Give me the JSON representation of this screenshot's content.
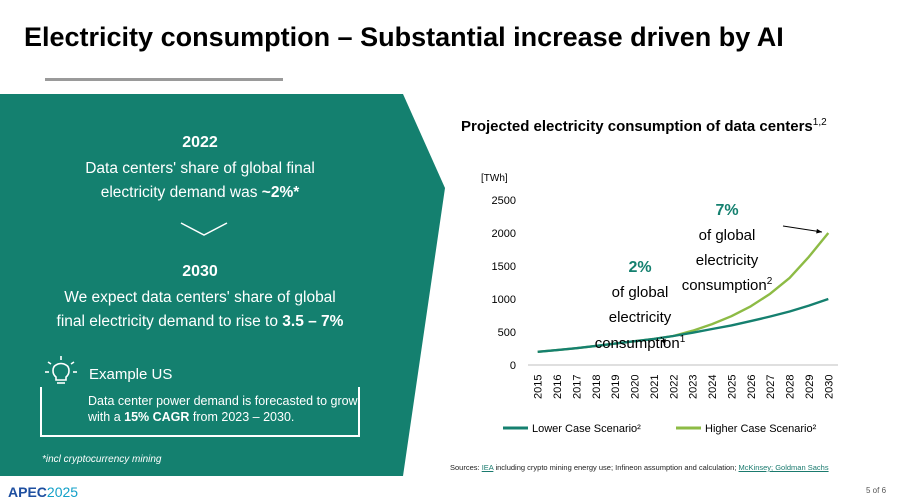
{
  "slide": {
    "title": "Electricity consumption – Substantial increase driven by AI",
    "page_number": "5 of 6",
    "logo_main": "APEC",
    "logo_year": "2025"
  },
  "panel": {
    "color": "#14806f",
    "year1": "2022",
    "text1_line1": "Data centers' share of global final",
    "text1_line2_pre": "electricity demand was ",
    "text1_line2_bold": "~2%*",
    "year2": "2030",
    "text2_line1": "We expect data centers' share of global",
    "text2_line2_pre": "final electricity demand to rise to ",
    "text2_line2_bold": "3.5 – 7%",
    "example_label": "Example US",
    "example_pre": "Data center power demand is forecasted to grow with a ",
    "example_bold": "15% CAGR",
    "example_post": " from 2023 – 2030.",
    "footnote": "*incl cryptocurrency mining"
  },
  "sources": {
    "prefix": "Sources: ",
    "link1": "IEA",
    "mid": " including crypto mining energy use; Infineon assumption and calculation; ",
    "link2": "McKinsey; Goldman Sachs"
  },
  "chart_data": {
    "type": "line",
    "title": "Projected electricity consumption of data centers",
    "title_superscript": "1,2",
    "ylabel": "[TWh]",
    "ylim": [
      0,
      2500
    ],
    "yticks": [
      0,
      500,
      1000,
      1500,
      2000,
      2500
    ],
    "x": [
      "2015",
      "2016",
      "2017",
      "2018",
      "2019",
      "2020",
      "2021",
      "2022",
      "2023",
      "2024",
      "2025",
      "2026",
      "2027",
      "2028",
      "2029",
      "2030"
    ],
    "grid": false,
    "legend_position": "bottom",
    "series": [
      {
        "name": "Lower Case Scenario²",
        "color": "#15806f",
        "values": [
          200,
          225,
          255,
          290,
          325,
          360,
          395,
          440,
          490,
          545,
          600,
          665,
          735,
          810,
          900,
          1000
        ]
      },
      {
        "name": "Higher Case Scenario²",
        "color": "#8dbb45",
        "values": [
          200,
          225,
          255,
          290,
          325,
          360,
          395,
          440,
          520,
          620,
          740,
          890,
          1080,
          1320,
          1640,
          2000
        ]
      }
    ],
    "annotations": [
      {
        "pct": "2%",
        "line1": "of global",
        "line2": "electricity",
        "line3": "consumption",
        "sup": "1"
      },
      {
        "pct": "7%",
        "line1": "of global",
        "line2": "electricity",
        "line3": "consumption",
        "sup": "2"
      }
    ]
  }
}
